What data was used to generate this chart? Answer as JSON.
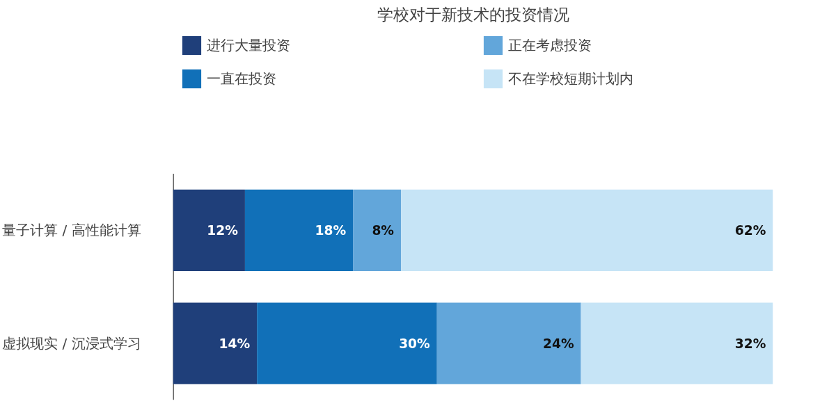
{
  "chart_data": {
    "type": "bar",
    "orientation": "horizontal",
    "stacked": true,
    "title": "学校对于新技术的投资情况",
    "categories": [
      "量子计算 / 高性能计算",
      "虚拟现实 / 沉浸式学习"
    ],
    "series": [
      {
        "name": "进行大量投资",
        "color": "#1f3f7a",
        "values": [
          12,
          14
        ],
        "value_labels": [
          "12%",
          "14%"
        ]
      },
      {
        "name": "一直在投资",
        "color": "#1170b8",
        "values": [
          18,
          30
        ],
        "value_labels": [
          "18%",
          "30%"
        ]
      },
      {
        "name": "正在考虑投资",
        "color": "#62a6da",
        "values": [
          8,
          24
        ],
        "value_labels": [
          "8%",
          "24%"
        ]
      },
      {
        "name": "不在学校短期计划内",
        "color": "#c6e4f6",
        "values": [
          62,
          32
        ],
        "value_labels": [
          "62%",
          "32%"
        ]
      }
    ],
    "legend": "top"
  }
}
